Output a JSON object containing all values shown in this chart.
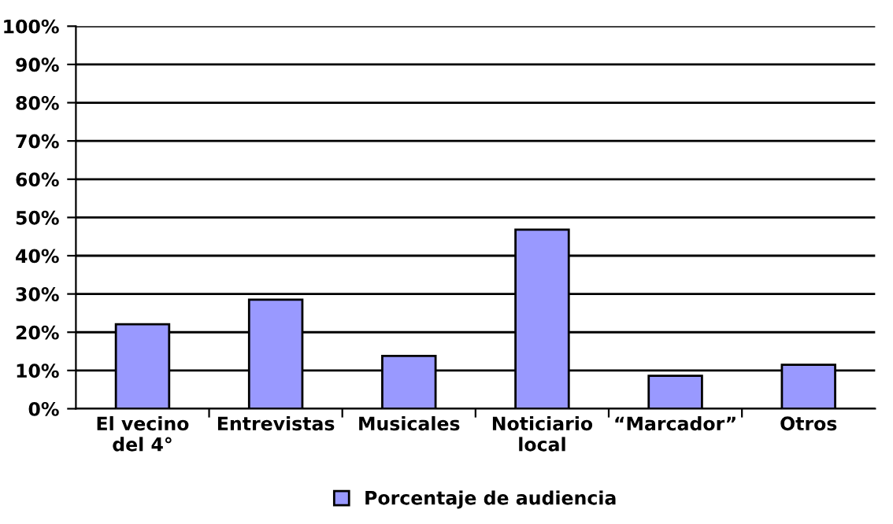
{
  "chart_data": {
    "type": "bar",
    "categories": [
      "El vecino\ndel 4°",
      "Entrevistas",
      "Musicales",
      "Noticiario\nlocal",
      "“Marcador”",
      "Otros"
    ],
    "series": [
      {
        "name": "Porcentaje de audiencia",
        "color": "#9999ff",
        "values": [
          22.1,
          28.5,
          13.8,
          46.8,
          8.6,
          11.5
        ]
      }
    ],
    "ylim": [
      0,
      100
    ],
    "yticks": [
      {
        "value": 0,
        "label": "0%"
      },
      {
        "value": 10,
        "label": "10%"
      },
      {
        "value": 20,
        "label": "20%"
      },
      {
        "value": 30,
        "label": "30%"
      },
      {
        "value": 40,
        "label": "40%"
      },
      {
        "value": 50,
        "label": "50%"
      },
      {
        "value": 60,
        "label": "60%"
      },
      {
        "value": 70,
        "label": "70%"
      },
      {
        "value": 80,
        "label": "80%"
      },
      {
        "value": 90,
        "label": "90%"
      },
      {
        "value": 100,
        "label": "100%"
      }
    ],
    "grid": "y",
    "legend": "bottom"
  }
}
